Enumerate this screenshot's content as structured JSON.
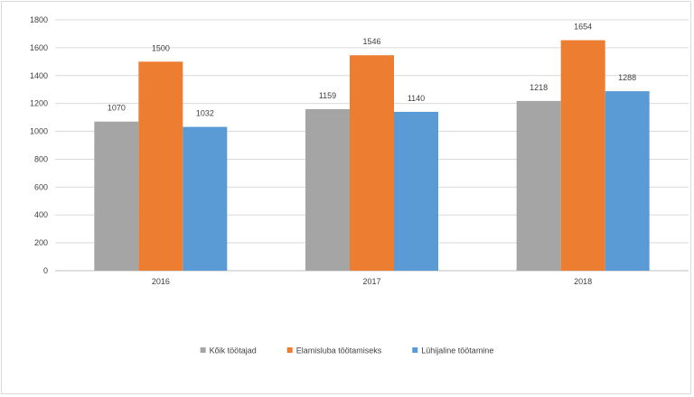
{
  "chart_data": {
    "type": "bar",
    "categories": [
      "2016",
      "2017",
      "2018"
    ],
    "series": [
      {
        "name": "Kõik töötajad",
        "color": "#a5a5a5",
        "values": [
          1070,
          1159,
          1218
        ]
      },
      {
        "name": "Elamisluba töötamiseks",
        "color": "#ed7d31",
        "values": [
          1500,
          1546,
          1654
        ]
      },
      {
        "name": "Lühijaline töötamine",
        "color": "#5b9bd5",
        "values": [
          1032,
          1140,
          1288
        ]
      }
    ],
    "ylim": [
      0,
      1800
    ],
    "yticks": [
      0,
      200,
      400,
      600,
      800,
      1000,
      1200,
      1400,
      1600,
      1800
    ],
    "grid": true,
    "legend_position": "bottom"
  }
}
